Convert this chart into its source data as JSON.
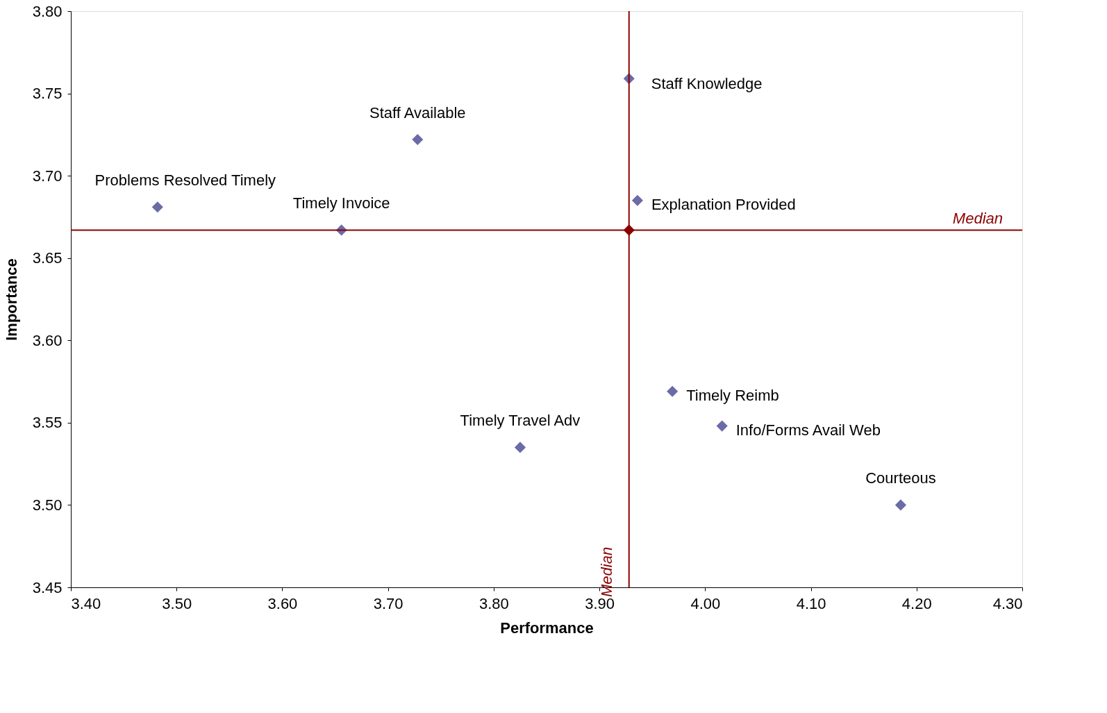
{
  "chart_data": {
    "type": "scatter",
    "xlabel": "Performance",
    "ylabel": "Importance",
    "xlim": [
      3.4,
      4.3
    ],
    "ylim": [
      3.45,
      3.8
    ],
    "xticks": [
      {
        "value": 3.4,
        "label": "3.40"
      },
      {
        "value": 3.5,
        "label": "3.50"
      },
      {
        "value": 3.6,
        "label": "3.60"
      },
      {
        "value": 3.7,
        "label": "3.70"
      },
      {
        "value": 3.8,
        "label": "3.80"
      },
      {
        "value": 3.9,
        "label": "3.90"
      },
      {
        "value": 4.0,
        "label": "4.00"
      },
      {
        "value": 4.1,
        "label": "4.10"
      },
      {
        "value": 4.2,
        "label": "4.20"
      },
      {
        "value": 4.3,
        "label": "4.30"
      }
    ],
    "yticks": [
      {
        "value": 3.45,
        "label": "3.45"
      },
      {
        "value": 3.5,
        "label": "3.50"
      },
      {
        "value": 3.55,
        "label": "3.55"
      },
      {
        "value": 3.6,
        "label": "3.60"
      },
      {
        "value": 3.65,
        "label": "3.65"
      },
      {
        "value": 3.7,
        "label": "3.70"
      },
      {
        "value": 3.75,
        "label": "3.75"
      },
      {
        "value": 3.8,
        "label": "3.80"
      }
    ],
    "marker": "diamond",
    "series": [
      {
        "color": "#6b6ba6",
        "x": [
          3.482,
          3.656,
          3.728,
          3.928,
          3.936,
          3.969,
          4.016,
          3.825,
          4.185
        ],
        "values": [
          3.681,
          3.667,
          3.722,
          3.759,
          3.685,
          3.569,
          3.548,
          3.535,
          3.5
        ]
      },
      {
        "color": "#8b0000",
        "x": [
          3.928
        ],
        "values": [
          3.667
        ]
      }
    ],
    "ref_lines": [
      {
        "axis": "x",
        "value": 3.928,
        "label": "Median",
        "color": "#8b0000"
      },
      {
        "axis": "y",
        "value": 3.667,
        "label": "Median",
        "color": "#8b0000"
      }
    ],
    "annotations": [
      {
        "text": "Problems Resolved Timely",
        "x": 3.482,
        "y": 3.681
      },
      {
        "text": "Timely Invoice",
        "x": 3.656,
        "y": 3.667
      },
      {
        "text": "Staff Available",
        "x": 3.728,
        "y": 3.722
      },
      {
        "text": "Staff Knowledge",
        "x": 3.928,
        "y": 3.759
      },
      {
        "text": "Explanation Provided",
        "x": 3.936,
        "y": 3.685
      },
      {
        "text": "Timely Reimb",
        "x": 3.969,
        "y": 3.569
      },
      {
        "text": "Info/Forms Avail Web",
        "x": 4.016,
        "y": 3.548
      },
      {
        "text": "Timely Travel Adv",
        "x": 3.825,
        "y": 3.535
      },
      {
        "text": "Courteous",
        "x": 4.185,
        "y": 3.5
      }
    ]
  }
}
